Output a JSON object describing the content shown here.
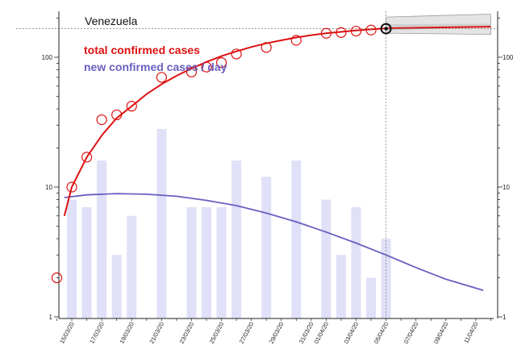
{
  "chart_data": {
    "type": "bar",
    "title": "Venezuela",
    "yscale": "log",
    "ylim": [
      1,
      200
    ],
    "y_tick_labels": [
      "1",
      "10",
      "100"
    ],
    "y_ticks": [
      1,
      10,
      100
    ],
    "grid": false,
    "legend_position": "top-left",
    "legend": [
      {
        "label": "total confirmed cases",
        "color": "#dd1111"
      },
      {
        "label": "new confirmed cases / day",
        "color": "#6a5fc0"
      }
    ],
    "x_date_labels": [
      "15/03/20",
      "17/03/20",
      "19/03/20",
      "21/03/20",
      "23/03/20",
      "25/03/20",
      "27/03/20",
      "29/03/20",
      "31/03/20",
      "01/04/20",
      "03/04/20",
      "05/04/20",
      "07/04/20",
      "09/04/20",
      "11/04/20"
    ],
    "x_date_label_days": [
      1,
      3,
      5,
      7,
      9,
      11,
      13,
      15,
      17,
      18,
      20,
      22,
      24,
      26,
      28
    ],
    "series": [
      {
        "name": "total confirmed cases",
        "type": "scatter",
        "color": "#dd1111",
        "days": [
          0,
          1,
          2,
          3,
          4,
          5,
          7,
          9,
          10,
          11,
          12,
          14,
          16,
          18,
          19,
          20,
          21,
          22
        ],
        "values": [
          2,
          10,
          17,
          33,
          36,
          42,
          70,
          77,
          84,
          91,
          106,
          119,
          135,
          153,
          155,
          159,
          162,
          166
        ]
      },
      {
        "name": "new confirmed cases / day",
        "type": "bar",
        "color": "#e0e0f8",
        "days": [
          1,
          2,
          3,
          4,
          5,
          7,
          9,
          10,
          11,
          12,
          14,
          16,
          18,
          19,
          20,
          21,
          22
        ],
        "values": [
          8,
          7,
          16,
          3,
          6,
          28,
          7,
          7,
          7,
          16,
          12,
          16,
          8,
          3,
          7,
          2,
          4
        ]
      }
    ],
    "fit_total": {
      "color": "#dd1111",
      "days": [
        0.5,
        1,
        2,
        3,
        4,
        5,
        6,
        7,
        8,
        9,
        10,
        11,
        12,
        13,
        14,
        15,
        16,
        17,
        18,
        19,
        20,
        21,
        22
      ],
      "values": [
        6,
        10,
        17,
        25,
        34,
        42,
        52,
        62,
        72,
        82,
        92,
        102,
        111,
        120,
        128,
        135,
        142,
        148,
        153,
        157,
        161,
        164,
        167
      ]
    },
    "fit_new": {
      "color": "#6a5fc0",
      "days": [
        0.5,
        2,
        4,
        6,
        8,
        10,
        12,
        14,
        16,
        18,
        20,
        22,
        24,
        26,
        28.5
      ],
      "values": [
        8.3,
        8.7,
        8.9,
        8.8,
        8.5,
        7.9,
        7.2,
        6.3,
        5.4,
        4.5,
        3.7,
        3.0,
        2.4,
        1.95,
        1.6
      ]
    },
    "forecast_total": {
      "days": [
        22,
        29
      ],
      "center": [
        167,
        172
      ],
      "lower": [
        167,
        150
      ],
      "upper": [
        167,
        215
      ]
    },
    "current_day": 22,
    "current_value": 166
  }
}
